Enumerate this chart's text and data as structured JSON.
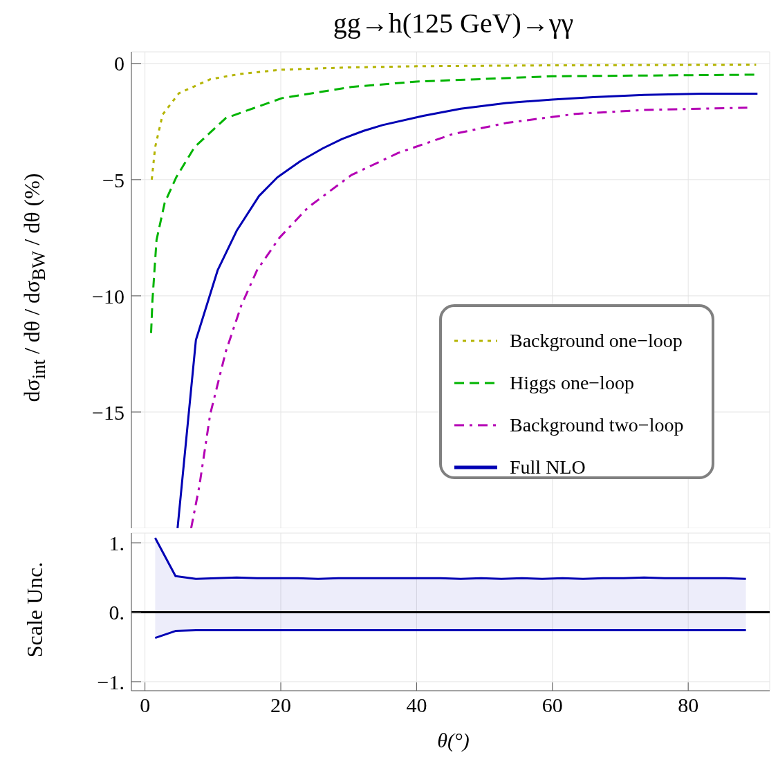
{
  "chart_data": [
    {
      "type": "line",
      "title": "gg→h(125 GeV)→γγ",
      "ylabel": "dσ$_{int}$ / dθ / dσ$_{BW}$ / dθ (%)",
      "xlim": [
        -2,
        92
      ],
      "ylim": [
        -20,
        0.5
      ],
      "xticks": [
        0,
        20,
        40,
        60,
        80
      ],
      "yticks": [
        0,
        {
          "value": -5,
          "label": "−5"
        },
        {
          "value": -10,
          "label": "−10"
        },
        {
          "value": -15,
          "label": "−15"
        }
      ],
      "tick_labels": "y",
      "grid": true,
      "legend": "right",
      "series": [
        {
          "name": "Background one−loop",
          "color": "#b4b400",
          "line_style": "dotted",
          "x": [
            1,
            1.5,
            2.6,
            5,
            9.6,
            14,
            20,
            30,
            40,
            60,
            90
          ],
          "values": [
            -5,
            -3.6,
            -2.2,
            -1.28,
            -0.68,
            -0.45,
            -0.27,
            -0.17,
            -0.12,
            -0.08,
            -0.05
          ]
        },
        {
          "name": "Higgs one−loop",
          "color": "#00b400",
          "line_style": "dashed",
          "x": [
            0.9,
            1.1,
            1.7,
            2.9,
            4.6,
            7.3,
            11.9,
            20.2,
            30.4,
            40,
            60,
            90
          ],
          "values": [
            -11.6,
            -10.2,
            -7.6,
            -6,
            -4.9,
            -3.6,
            -2.35,
            -1.49,
            -1.01,
            -0.78,
            -0.55,
            -0.48
          ]
        },
        {
          "name": "Background two−loop",
          "color": "#b400b4",
          "line_style": "dashdot",
          "x": [
            6.8,
            8,
            9.6,
            11.9,
            14.2,
            16.5,
            19.8,
            24,
            30.4,
            37.3,
            45.2,
            53.2,
            63.4,
            73.5,
            88.7
          ],
          "values": [
            -20,
            -18.2,
            -15.1,
            -12.4,
            -10.4,
            -8.9,
            -7.5,
            -6.2,
            -4.8,
            -3.85,
            -3.05,
            -2.56,
            -2.17,
            -2,
            -1.9
          ]
        },
        {
          "name": "Full NLO",
          "color": "#0000b4",
          "line_style": "solid",
          "x": [
            4.8,
            7.5,
            10.7,
            13.5,
            16.8,
            19.5,
            22.9,
            26.2,
            29,
            32.2,
            35,
            41,
            46.5,
            53.2,
            60,
            66,
            73.5,
            82,
            90.2
          ],
          "values": [
            -20,
            -11.9,
            -8.9,
            -7.2,
            -5.7,
            -4.9,
            -4.2,
            -3.65,
            -3.25,
            -2.9,
            -2.65,
            -2.25,
            -1.95,
            -1.7,
            -1.55,
            -1.45,
            -1.35,
            -1.3,
            -1.3
          ]
        }
      ]
    },
    {
      "type": "line",
      "xlabel": "θ(°)",
      "ylabel": "Scale Unc.",
      "xlim": [
        -2,
        92
      ],
      "ylim": [
        -1.13,
        1.14
      ],
      "xticks": [
        0,
        20,
        40,
        60,
        80
      ],
      "yticks": [
        {
          "value": 1,
          "label": "1."
        },
        {
          "value": 0,
          "label": "0."
        },
        {
          "value": -1,
          "label": "−1."
        }
      ],
      "grid": true,
      "ref_lines": [
        {
          "axis": "y",
          "value": 0,
          "color": "#000000"
        }
      ],
      "series": [
        {
          "color": "#0000b4",
          "values": [
            1.07,
            0.52,
            0.48,
            0.49,
            0.5,
            0.49,
            0.49,
            0.49,
            0.48,
            0.49,
            0.49,
            0.49,
            0.49,
            0.49,
            0.49,
            0.48,
            0.49,
            0.48,
            0.49,
            0.48,
            0.49,
            0.48,
            0.49,
            0.49,
            0.5,
            0.49,
            0.49,
            0.49,
            0.49,
            0.48
          ],
          "x": [
            1.5,
            4.5,
            7.5,
            10.5,
            13.5,
            16.5,
            19.5,
            22.5,
            25.5,
            28.5,
            31.5,
            34.5,
            37.5,
            40.5,
            43.5,
            46.5,
            49.5,
            52.5,
            55.5,
            58.5,
            61.5,
            64.5,
            67.5,
            70.5,
            73.5,
            76.5,
            79.5,
            82.5,
            85.5,
            88.5
          ],
          "lower": [
            -0.37,
            -0.27,
            -0.26,
            -0.26,
            -0.26,
            -0.26,
            -0.26,
            -0.26,
            -0.26,
            -0.26,
            -0.26,
            -0.26,
            -0.26,
            -0.26,
            -0.26,
            -0.26,
            -0.26,
            -0.26,
            -0.26,
            -0.26,
            -0.26,
            -0.26,
            -0.26,
            -0.26,
            -0.26,
            -0.26,
            -0.26,
            -0.26,
            -0.26,
            -0.26
          ],
          "upper": [
            1.07,
            0.52,
            0.48,
            0.49,
            0.5,
            0.49,
            0.49,
            0.49,
            0.48,
            0.49,
            0.49,
            0.49,
            0.49,
            0.49,
            0.49,
            0.48,
            0.49,
            0.48,
            0.49,
            0.48,
            0.49,
            0.48,
            0.49,
            0.49,
            0.5,
            0.49,
            0.49,
            0.49,
            0.49,
            0.48
          ]
        },
        {
          "color": "#0000b4",
          "x": [
            1.5,
            4.5,
            7.5,
            10.5,
            13.5,
            16.5,
            19.5,
            22.5,
            25.5,
            28.5,
            31.5,
            34.5,
            37.5,
            40.5,
            43.5,
            46.5,
            49.5,
            52.5,
            55.5,
            58.5,
            61.5,
            64.5,
            67.5,
            70.5,
            73.5,
            76.5,
            79.5,
            82.5,
            85.5,
            88.5
          ],
          "values": [
            -0.37,
            -0.27,
            -0.26,
            -0.26,
            -0.26,
            -0.26,
            -0.26,
            -0.26,
            -0.26,
            -0.26,
            -0.26,
            -0.26,
            -0.26,
            -0.26,
            -0.26,
            -0.26,
            -0.26,
            -0.26,
            -0.26,
            -0.26,
            -0.26,
            -0.26,
            -0.26,
            -0.26,
            -0.26,
            -0.26,
            -0.26,
            -0.26,
            -0.26,
            -0.26
          ]
        }
      ]
    }
  ]
}
